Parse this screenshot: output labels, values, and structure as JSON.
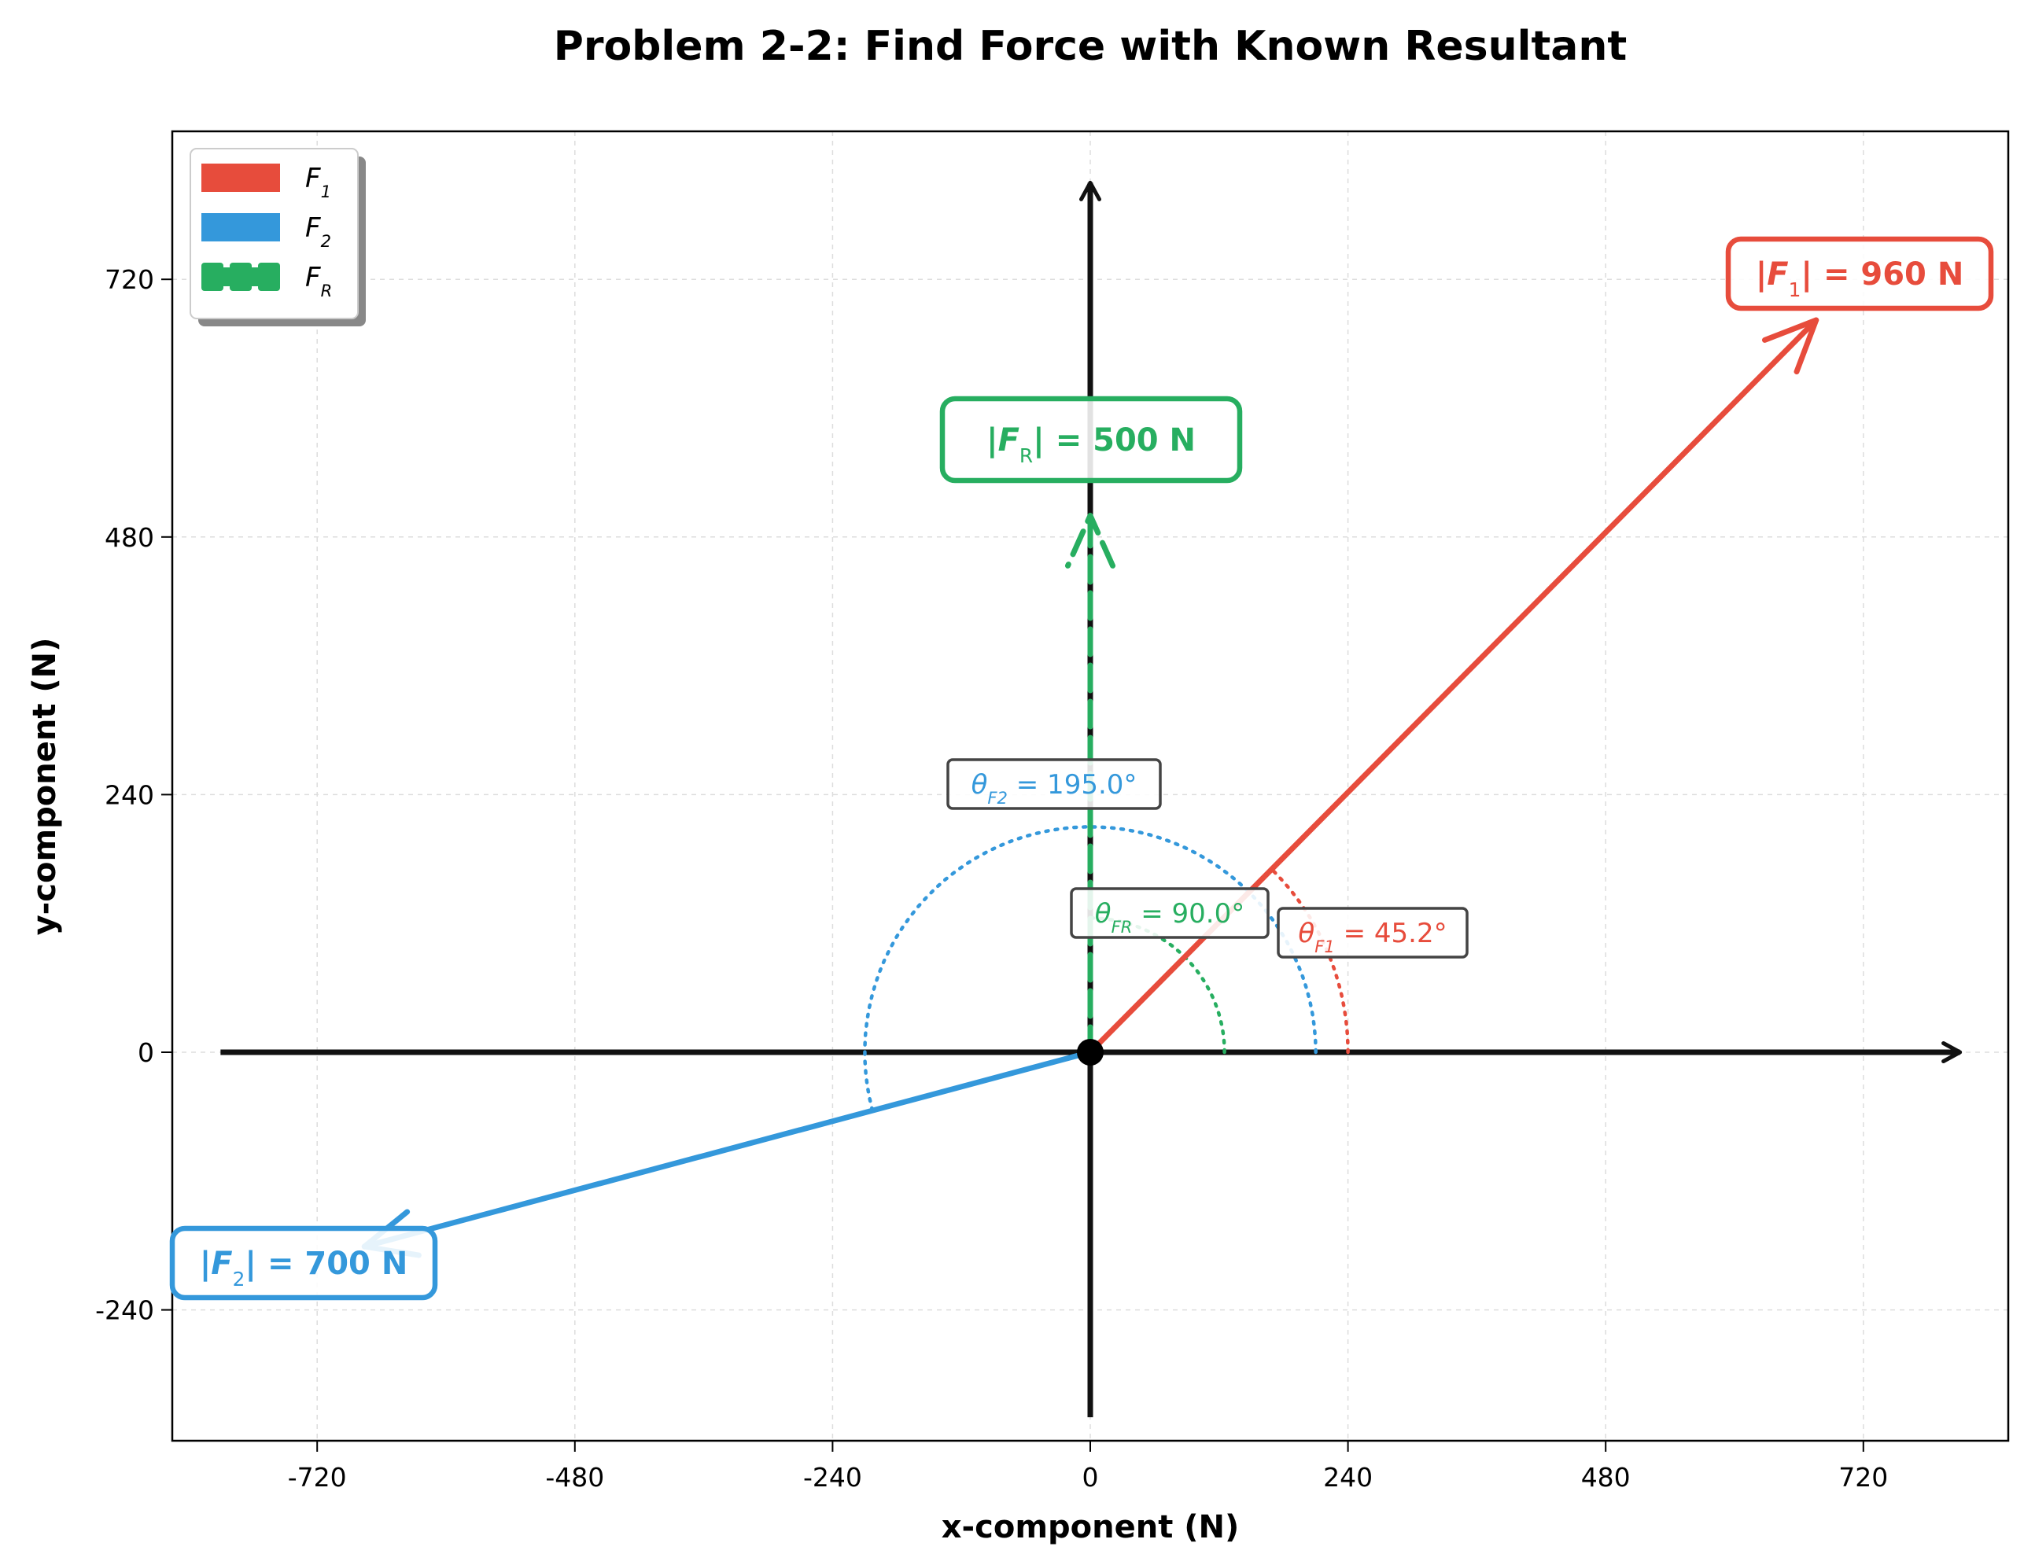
{
  "chart_data": {
    "type": "vector_diagram",
    "title": "Problem 2-2: Find Force with Known Resultant",
    "xlabel": "x-component (N)",
    "ylabel": "y-component (N)",
    "xlim": [
      -855,
      855
    ],
    "ylim": [
      -360,
      860
    ],
    "xticks": [
      -720,
      -480,
      -240,
      0,
      240,
      480,
      720
    ],
    "yticks": [
      -240,
      0,
      240,
      480,
      720
    ],
    "grid": true,
    "legend_position": "upper left",
    "series": [
      {
        "name": "F₁",
        "label_symbol": "F",
        "label_sub": "1",
        "color": "#e74c3c",
        "style": "solid",
        "x": 676,
        "y": 682,
        "magnitude_label": "|F₁| = 960 N",
        "angle_label": "θF₁ = 45.2°",
        "angle_deg": 45.2
      },
      {
        "name": "F₂",
        "label_symbol": "F",
        "label_sub": "2",
        "color": "#3498db",
        "style": "solid",
        "x": -676,
        "y": -181,
        "magnitude_label": "|F₂| = 700 N",
        "angle_label": "θF₂ = 195.0°",
        "angle_deg": 195.0
      },
      {
        "name": "F_R",
        "label_symbol": "F",
        "label_sub": "R",
        "color": "#27ae60",
        "style": "dashed",
        "x": 0,
        "y": 500,
        "magnitude_label": "|F_R| = 500 N",
        "angle_label": "θF_R = 90.0°",
        "angle_deg": 90.0
      }
    ]
  }
}
